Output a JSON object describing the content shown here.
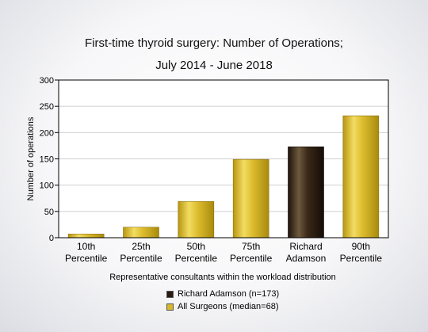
{
  "chart_data": {
    "type": "bar",
    "title": [
      "First-time thyroid surgery: Number of Operations;",
      "July 2014 - June 2018"
    ],
    "xlabel": "Representative consultants within the workload distribution",
    "ylabel": "Number of operations",
    "ylim": [
      0,
      300
    ],
    "yticks": [
      0,
      50,
      100,
      150,
      200,
      250,
      300
    ],
    "categories": [
      [
        "10th",
        "Percentile"
      ],
      [
        "25th",
        "Percentile"
      ],
      [
        "50th",
        "Percentile"
      ],
      [
        "75th",
        "Percentile"
      ],
      [
        "Richard",
        "Adamson"
      ],
      [
        "90th",
        "Percentile"
      ]
    ],
    "values": [
      7,
      20,
      69,
      149,
      173,
      232
    ],
    "highlight_index": 4,
    "grid": "horizontal",
    "legend_position": "bottom",
    "legend": [
      {
        "label": "Richard Adamson (n=173)",
        "color": "#2a1a12"
      },
      {
        "label": "All Surgeons (median=68)",
        "color": "#d9b92b"
      }
    ],
    "colors": {
      "surgeon": "#2a1a12",
      "all": "#d9b92b"
    }
  }
}
